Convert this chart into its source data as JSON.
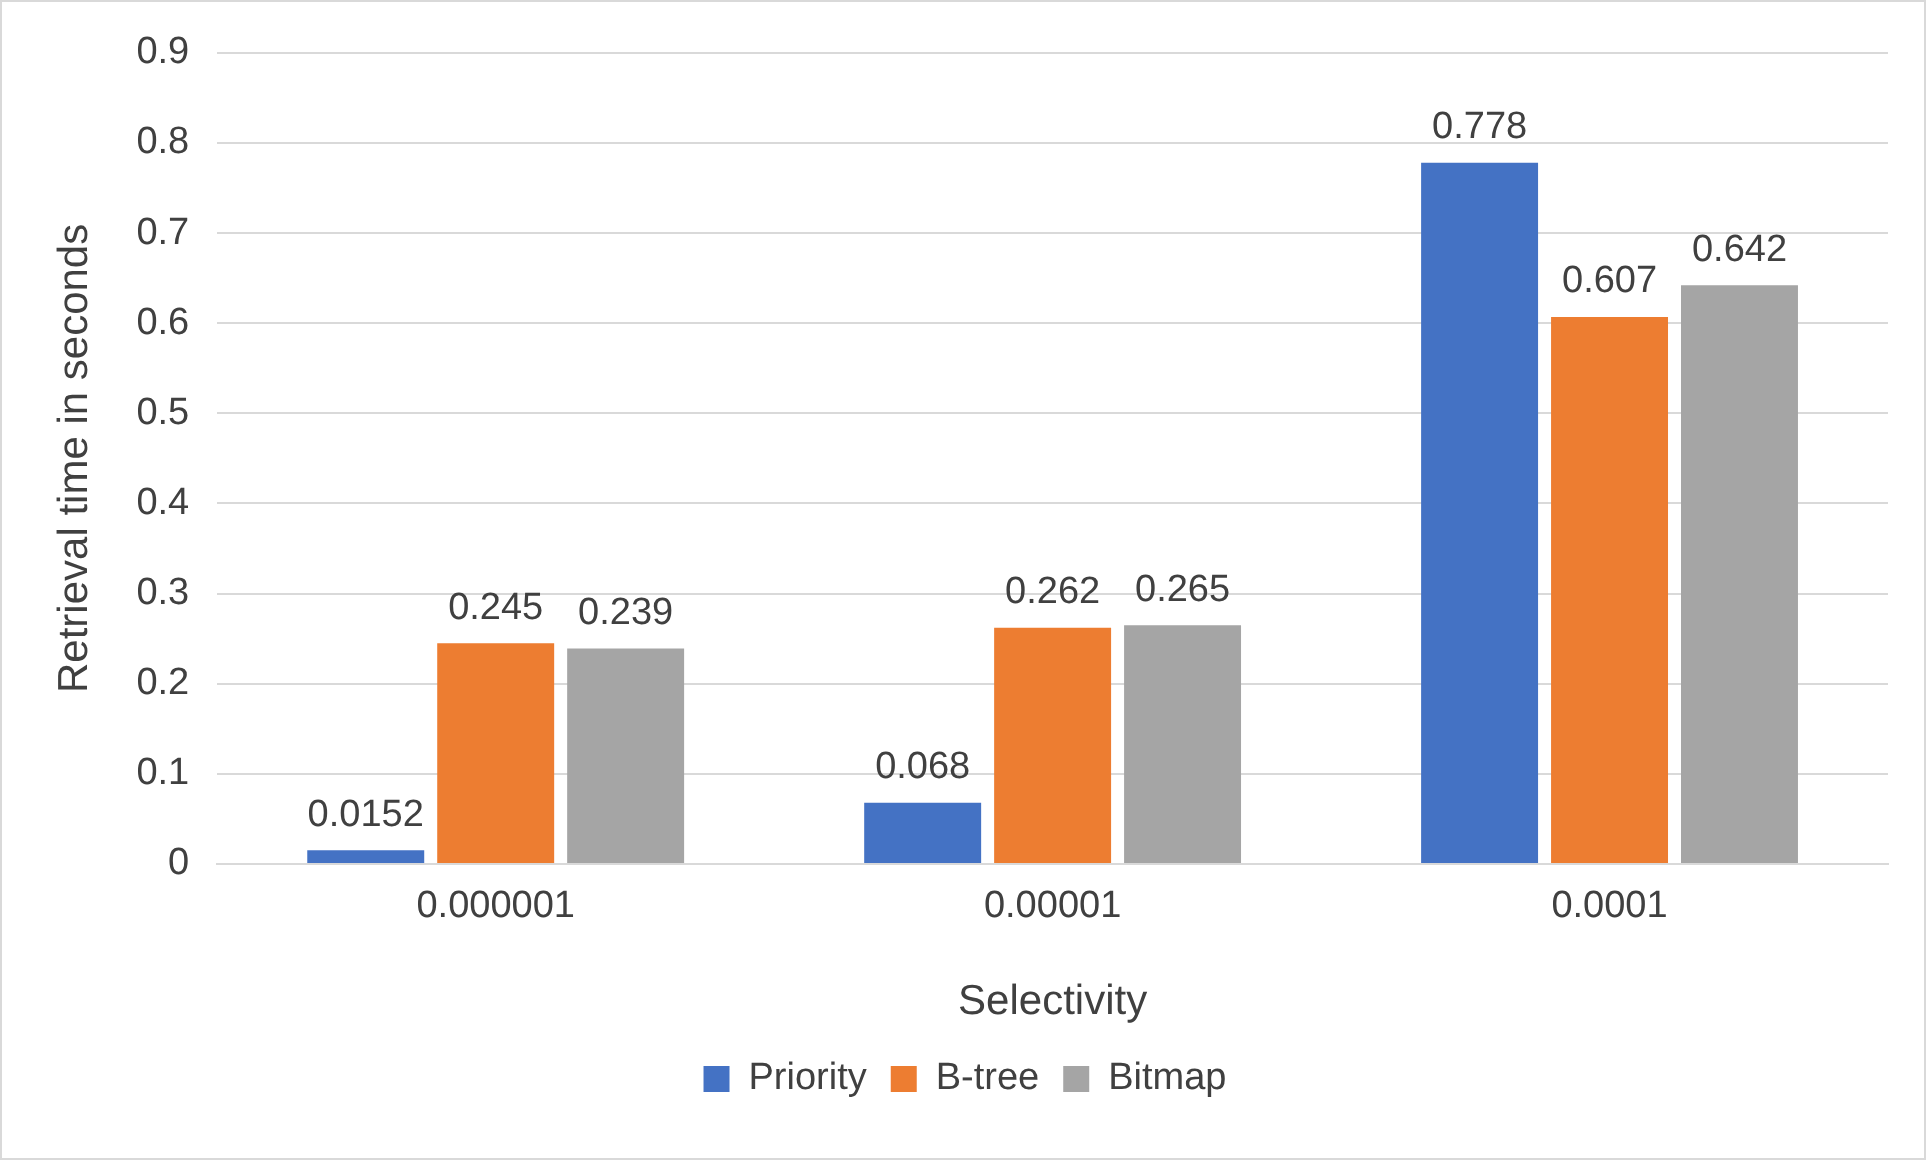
{
  "chart_data": {
    "type": "bar",
    "xlabel": "Selectivity",
    "ylabel": "Retrieval time in seconds",
    "categories": [
      "0.000001",
      "0.00001",
      "0.0001"
    ],
    "series": [
      {
        "name": "Priority",
        "color": "#4472c4",
        "values": [
          0.0152,
          0.068,
          0.778
        ]
      },
      {
        "name": "B-tree",
        "color": "#ed7d31",
        "values": [
          0.245,
          0.262,
          0.607
        ]
      },
      {
        "name": "Bitmap",
        "color": "#a5a5a5",
        "values": [
          0.239,
          0.265,
          0.642
        ]
      }
    ],
    "ylim": [
      0,
      0.9
    ],
    "yticks": [
      0,
      0.1,
      0.2,
      0.3,
      0.4,
      0.5,
      0.6,
      0.7,
      0.8,
      0.9
    ],
    "grid": "y",
    "legend": "bottom",
    "data_labels": true
  }
}
